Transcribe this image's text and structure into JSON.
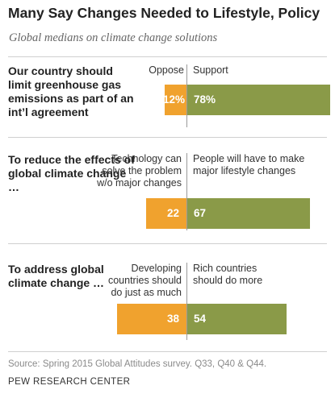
{
  "chart_data": {
    "type": "bar",
    "title": "Many Say Changes Needed to Lifestyle, Policy",
    "subtitle": "Global medians on climate change solutions",
    "source": "Source: Spring 2015 Global Attitudes survey. Q33, Q40 & Q44.",
    "brand": "PEW RESEARCH CENTER",
    "colors": {
      "left": "#f0a22e",
      "right": "#8a9a48"
    },
    "items": [
      {
        "question": "Our country should limit greenhouse gas emissions as part of an int’l agreement",
        "left_label": "Oppose",
        "right_label": "Support",
        "left_value": 12,
        "right_value": 78,
        "left_display": "12%",
        "right_display": "78%"
      },
      {
        "question": "To reduce the effects of global climate change …",
        "left_label": "Technology can solve the problem w/o major changes",
        "right_label": "People will have to make major lifestyle changes",
        "left_value": 22,
        "right_value": 67,
        "left_display": "22",
        "right_display": "67"
      },
      {
        "question": "To address global climate change …",
        "left_label": "Developing countries should do just as much",
        "right_label": "Rich countries should do more",
        "left_value": 38,
        "right_value": 54,
        "left_display": "38",
        "right_display": "54"
      }
    ]
  }
}
